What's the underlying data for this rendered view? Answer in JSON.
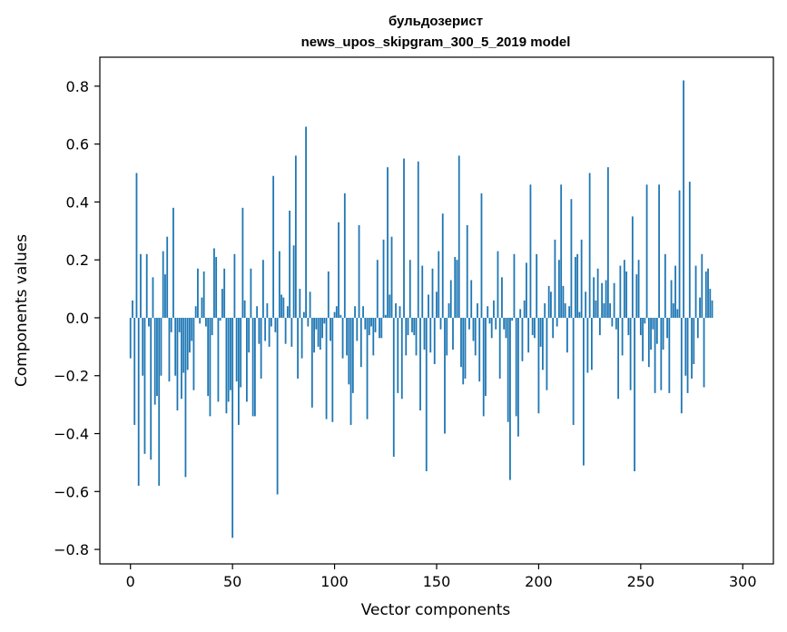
{
  "chart_data": {
    "type": "bar",
    "title_line1": "бульдозерист",
    "title_line2": "news_upos_skipgram_300_5_2019 model",
    "xlabel": "Vector components",
    "ylabel": "Components values",
    "xlim": [
      -15,
      315
    ],
    "ylim": [
      -0.85,
      0.9
    ],
    "xticks": [
      0,
      50,
      100,
      150,
      200,
      250,
      300
    ],
    "xtick_labels": [
      "0",
      "50",
      "100",
      "150",
      "200",
      "250",
      "300"
    ],
    "yticks": [
      -0.8,
      -0.6,
      -0.4,
      -0.2,
      0.0,
      0.2,
      0.4,
      0.6,
      0.8
    ],
    "ytick_labels": [
      "−0.8",
      "−0.6",
      "−0.4",
      "−0.2",
      "0.0",
      "0.2",
      "0.4",
      "0.6",
      "0.8"
    ],
    "grid": false,
    "bar_color": "#1f77b4",
    "values": [
      -0.14,
      0.06,
      -0.37,
      0.5,
      -0.58,
      0.22,
      -0.2,
      -0.47,
      0.22,
      -0.03,
      -0.49,
      0.14,
      -0.3,
      -0.27,
      -0.58,
      -0.2,
      0.23,
      0.15,
      0.28,
      -0.22,
      -0.05,
      0.38,
      -0.2,
      -0.32,
      -0.05,
      -0.28,
      -0.19,
      -0.55,
      -0.18,
      -0.12,
      -0.08,
      -0.25,
      0.04,
      0.17,
      -0.02,
      0.07,
      0.16,
      -0.03,
      -0.27,
      -0.34,
      -0.06,
      0.24,
      0.21,
      -0.29,
      -0.01,
      0.1,
      0.17,
      -0.33,
      -0.29,
      -0.25,
      -0.76,
      0.22,
      -0.22,
      -0.37,
      -0.24,
      0.38,
      0.06,
      -0.29,
      -0.12,
      0.17,
      -0.34,
      -0.34,
      0.04,
      -0.09,
      -0.21,
      0.2,
      -0.08,
      0.05,
      -0.1,
      -0.03,
      0.49,
      -0.05,
      -0.61,
      0.23,
      0.08,
      0.07,
      -0.09,
      0.04,
      0.37,
      -0.1,
      0.25,
      0.56,
      -0.21,
      0.1,
      -0.14,
      0.02,
      0.66,
      -0.03,
      0.09,
      -0.31,
      -0.12,
      -0.04,
      -0.1,
      -0.11,
      -0.07,
      -0.02,
      -0.35,
      0.16,
      -0.08,
      -0.36,
      0.02,
      0.04,
      0.33,
      0.01,
      -0.14,
      0.43,
      -0.13,
      -0.23,
      -0.37,
      -0.26,
      0.04,
      -0.08,
      0.32,
      -0.17,
      0.04,
      -0.04,
      -0.35,
      -0.06,
      -0.03,
      -0.13,
      -0.05,
      0.2,
      -0.07,
      -0.07,
      0.27,
      0.01,
      0.52,
      0.08,
      0.28,
      -0.48,
      0.05,
      -0.26,
      0.04,
      -0.28,
      0.55,
      -0.13,
      -0.06,
      0.2,
      -0.05,
      -0.06,
      -0.13,
      0.54,
      -0.32,
      0.18,
      -0.11,
      -0.53,
      0.08,
      -0.12,
      0.17,
      -0.16,
      0.09,
      0.23,
      -0.04,
      0.36,
      -0.4,
      -0.13,
      0.05,
      0.13,
      -0.11,
      0.21,
      0.2,
      0.56,
      -0.17,
      -0.23,
      -0.21,
      0.32,
      -0.04,
      0.13,
      -0.08,
      -0.13,
      0.05,
      -0.22,
      0.43,
      -0.34,
      -0.27,
      0.04,
      -0.02,
      -0.07,
      0.06,
      -0.04,
      0.23,
      -0.21,
      0.14,
      -0.04,
      -0.07,
      -0.36,
      -0.56,
      -0.01,
      0.22,
      -0.34,
      -0.41,
      0.03,
      -0.15,
      0.06,
      0.19,
      -0.12,
      0.46,
      -0.06,
      -0.07,
      0.22,
      -0.33,
      -0.1,
      -0.18,
      0.05,
      -0.25,
      0.11,
      0.09,
      -0.07,
      0.27,
      -0.03,
      0.2,
      0.46,
      0.11,
      0.05,
      -0.12,
      0.04,
      0.41,
      -0.37,
      0.21,
      0.22,
      0.02,
      0.27,
      -0.51,
      0.09,
      -0.19,
      0.5,
      -0.18,
      0.14,
      0.06,
      0.17,
      -0.06,
      0.12,
      0.05,
      0.13,
      0.52,
      0.05,
      -0.03,
      0.12,
      -0.04,
      -0.28,
      0.18,
      -0.13,
      0.2,
      0.16,
      -0.06,
      -0.25,
      0.35,
      -0.53,
      0.15,
      0.2,
      -0.06,
      -0.15,
      -0.02,
      0.46,
      -0.17,
      -0.11,
      -0.04,
      -0.26,
      -0.09,
      0.46,
      -0.25,
      -0.11,
      0.22,
      -0.07,
      -0.26,
      0.13,
      0.05,
      0.18,
      0.03,
      0.44,
      -0.33,
      0.82,
      -0.2,
      -0.26,
      0.47,
      -0.21,
      -0.16,
      0.18,
      -0.07,
      0.07,
      0.22,
      -0.24,
      0.16,
      0.17,
      0.1,
      0.06
    ]
  }
}
